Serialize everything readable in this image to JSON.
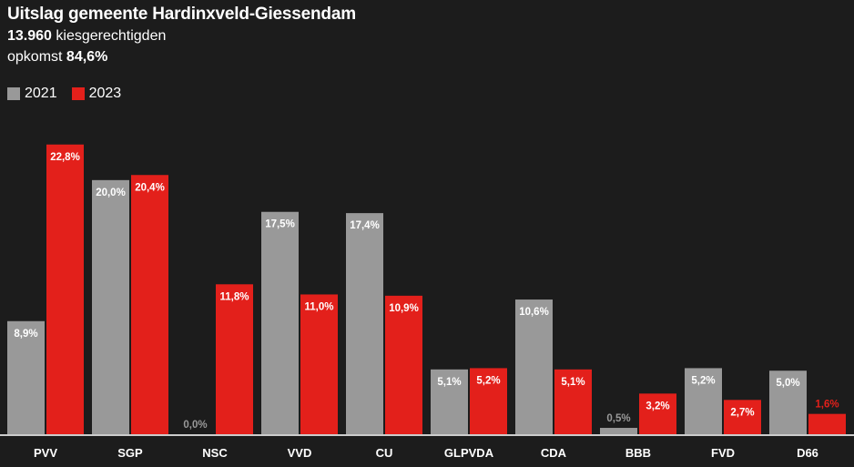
{
  "title": "Uitslag gemeente Hardinxveld-Giessendam",
  "electorate": {
    "value": "13.960",
    "label": "kiesgerechtigden"
  },
  "turnout": {
    "label": "opkomst",
    "value": "84,6%"
  },
  "colors": {
    "s2021": "#999999",
    "s2023": "#e3201b",
    "background": "#1c1c1c",
    "axis": "#cccccc",
    "label_on_red_small": "#e3201b"
  },
  "chart_data": {
    "type": "bar",
    "categories": [
      "PVV",
      "SGP",
      "NSC",
      "VVD",
      "CU",
      "GLPVDA",
      "CDA",
      "BBB",
      "FVD",
      "D66"
    ],
    "series": [
      {
        "name": "2021",
        "values": [
          8.9,
          20.0,
          0.0,
          17.5,
          17.4,
          5.1,
          10.6,
          0.5,
          5.2,
          5.0
        ],
        "labels": [
          "8,9%",
          "20,0%",
          "0,0%",
          "17,5%",
          "17,4%",
          "5,1%",
          "10,6%",
          "0,5%",
          "5,2%",
          "5,0%"
        ]
      },
      {
        "name": "2023",
        "values": [
          22.8,
          20.4,
          11.8,
          11.0,
          10.9,
          5.2,
          5.1,
          3.2,
          2.7,
          1.6
        ],
        "labels": [
          "22,8%",
          "20,4%",
          "11,8%",
          "11,0%",
          "10,9%",
          "5,2%",
          "5,1%",
          "3,2%",
          "2,7%",
          "1,6%"
        ]
      }
    ],
    "ylim": [
      0,
      24
    ],
    "grid": false,
    "legend": "top-left"
  }
}
